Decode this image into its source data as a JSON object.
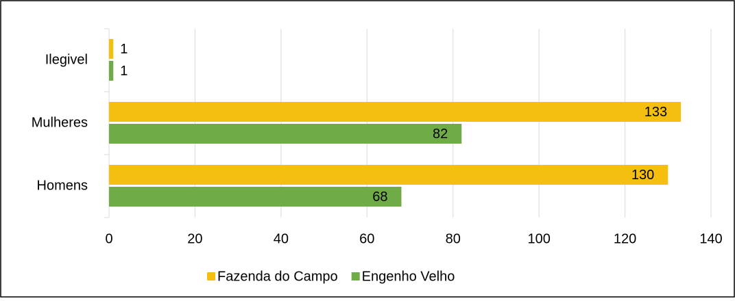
{
  "chart_data": {
    "type": "hbar",
    "categories": [
      "Ilegivel",
      "Mulheres",
      "Homens"
    ],
    "series": [
      {
        "name": "Fazenda do Campo",
        "color": "#f5bf0f",
        "values": [
          1,
          133,
          130
        ]
      },
      {
        "name": "Engenho Velho",
        "color": "#6fab46",
        "values": [
          1,
          82,
          68
        ]
      }
    ],
    "xlim": [
      0,
      140
    ],
    "xticks": [
      0,
      20,
      40,
      60,
      80,
      100,
      120,
      140
    ],
    "grid": true,
    "legend": "bottom"
  }
}
